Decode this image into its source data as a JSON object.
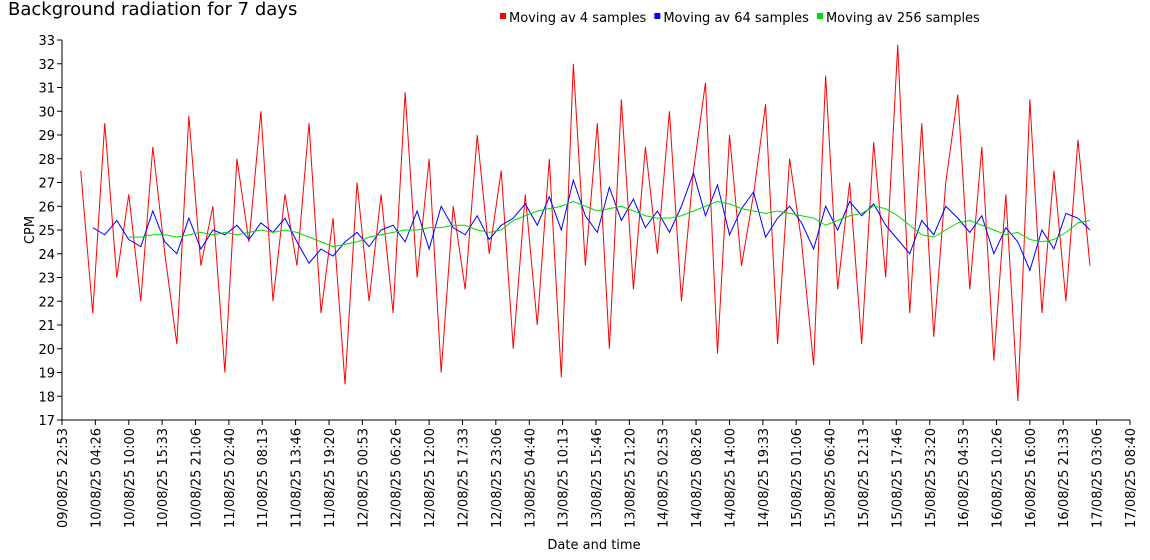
{
  "chart_data": {
    "type": "line",
    "title": "Background radiation for 7 days",
    "x_label": "Date and time",
    "y_label": "CPM",
    "ylim": [
      17,
      33
    ],
    "yticks": [
      17,
      18,
      19,
      20,
      21,
      22,
      23,
      24,
      25,
      26,
      27,
      28,
      29,
      30,
      31,
      32,
      33
    ],
    "xlim": [
      "09/08/25 22:53",
      "17/08/25 08:40"
    ],
    "xticks": [
      "09/08/25 22:53",
      "10/08/25 04:26",
      "10/08/25 10:00",
      "10/08/25 15:33",
      "10/08/25 21:06",
      "11/08/25 02:40",
      "11/08/25 08:13",
      "11/08/25 13:46",
      "11/08/25 19:20",
      "12/08/25 00:53",
      "12/08/25 06:26",
      "12/08/25 12:00",
      "12/08/25 17:33",
      "12/08/25 23:06",
      "13/08/25 04:40",
      "13/08/25 10:13",
      "13/08/25 15:46",
      "13/08/25 21:20",
      "14/08/25 02:53",
      "14/08/25 08:26",
      "14/08/25 14:00",
      "14/08/25 19:33",
      "15/08/25 01:06",
      "15/08/25 06:40",
      "15/08/25 12:13",
      "15/08/25 17:46",
      "15/08/25 23:20",
      "16/08/25 04:53",
      "16/08/25 10:26",
      "16/08/25 16:00",
      "16/08/25 21:33",
      "17/08/25 03:06",
      "17/08/25 08:40"
    ],
    "legend": "top",
    "x": [
      "10/08/25 02:00",
      "10/08/25 04:00",
      "10/08/25 06:00",
      "10/08/25 08:00",
      "10/08/25 10:00",
      "10/08/25 12:00",
      "10/08/25 14:00",
      "10/08/25 16:00",
      "10/08/25 18:00",
      "10/08/25 20:00",
      "10/08/25 22:00",
      "11/08/25 00:00",
      "11/08/25 02:00",
      "11/08/25 04:00",
      "11/08/25 06:00",
      "11/08/25 08:00",
      "11/08/25 10:00",
      "11/08/25 12:00",
      "11/08/25 14:00",
      "11/08/25 16:00",
      "11/08/25 18:00",
      "11/08/25 20:00",
      "11/08/25 22:00",
      "12/08/25 00:00",
      "12/08/25 02:00",
      "12/08/25 04:00",
      "12/08/25 06:00",
      "12/08/25 08:00",
      "12/08/25 10:00",
      "12/08/25 12:00",
      "12/08/25 14:00",
      "12/08/25 16:00",
      "12/08/25 18:00",
      "12/08/25 20:00",
      "12/08/25 22:00",
      "13/08/25 00:00",
      "13/08/25 02:00",
      "13/08/25 04:00",
      "13/08/25 06:00",
      "13/08/25 08:00",
      "13/08/25 10:00",
      "13/08/25 12:00",
      "13/08/25 14:00",
      "13/08/25 16:00",
      "13/08/25 18:00",
      "13/08/25 20:00",
      "13/08/25 22:00",
      "14/08/25 00:00",
      "14/08/25 02:00",
      "14/08/25 04:00",
      "14/08/25 06:00",
      "14/08/25 08:00",
      "14/08/25 10:00",
      "14/08/25 12:00",
      "14/08/25 14:00",
      "14/08/25 16:00",
      "14/08/25 18:00",
      "14/08/25 20:00",
      "14/08/25 22:00",
      "15/08/25 00:00",
      "15/08/25 02:00",
      "15/08/25 04:00",
      "15/08/25 06:00",
      "15/08/25 08:00",
      "15/08/25 10:00",
      "15/08/25 12:00",
      "15/08/25 14:00",
      "15/08/25 16:00",
      "15/08/25 18:00",
      "15/08/25 20:00",
      "15/08/25 22:00",
      "16/08/25 00:00",
      "16/08/25 02:00",
      "16/08/25 04:00",
      "16/08/25 06:00",
      "16/08/25 08:00",
      "16/08/25 10:00",
      "16/08/25 12:00",
      "16/08/25 14:00",
      "16/08/25 16:00",
      "16/08/25 18:00",
      "16/08/25 20:00",
      "16/08/25 22:00",
      "17/08/25 00:00",
      "17/08/25 02:00"
    ],
    "series": [
      {
        "name": "Moving av 4 samples",
        "color": "#ff0000",
        "values": [
          27.5,
          21.5,
          29.5,
          23.0,
          26.5,
          22.0,
          28.5,
          24.0,
          20.2,
          29.8,
          23.5,
          26.0,
          19.0,
          28.0,
          24.5,
          30.0,
          22.0,
          26.5,
          23.5,
          29.5,
          21.5,
          25.5,
          18.5,
          27.0,
          22.0,
          26.5,
          21.5,
          30.8,
          23.0,
          28.0,
          19.0,
          26.0,
          22.5,
          29.0,
          24.0,
          27.5,
          20.0,
          26.5,
          21.0,
          28.0,
          18.8,
          32.0,
          23.5,
          29.5,
          20.0,
          30.5,
          22.5,
          28.5,
          24.0,
          30.0,
          22.0,
          27.5,
          31.2,
          19.8,
          29.0,
          23.5,
          26.5,
          30.3,
          20.2,
          28.0,
          24.5,
          19.3,
          31.5,
          22.5,
          27.0,
          20.2,
          28.7,
          23.0,
          32.8,
          21.5,
          29.5,
          20.5,
          27.0,
          30.7,
          22.5,
          28.5,
          19.5,
          26.5,
          17.8,
          30.5,
          21.5,
          27.5,
          22.0,
          28.8,
          23.5
        ]
      },
      {
        "name": "Moving av 64 samples",
        "color": "#0000ff",
        "values": [
          null,
          25.1,
          24.8,
          25.4,
          24.6,
          24.3,
          25.8,
          24.5,
          24.0,
          25.5,
          24.2,
          25.0,
          24.8,
          25.2,
          24.6,
          25.3,
          24.9,
          25.5,
          24.5,
          23.6,
          24.2,
          23.9,
          24.5,
          24.9,
          24.3,
          25.0,
          25.2,
          24.5,
          25.8,
          24.2,
          26.0,
          25.1,
          24.8,
          25.6,
          24.6,
          25.2,
          25.5,
          26.1,
          25.2,
          26.4,
          25.0,
          27.1,
          25.6,
          24.9,
          26.8,
          25.4,
          26.3,
          25.1,
          25.8,
          24.9,
          26.0,
          27.4,
          25.6,
          26.9,
          24.8,
          25.9,
          26.6,
          24.7,
          25.5,
          26.0,
          25.3,
          24.2,
          26.0,
          25.0,
          26.2,
          25.6,
          26.1,
          25.2,
          24.6,
          24.0,
          25.4,
          24.8,
          26.0,
          25.5,
          24.9,
          25.6,
          24.0,
          25.1,
          24.5,
          23.3,
          25.0,
          24.2,
          25.7,
          25.5,
          25.0
        ]
      },
      {
        "name": "Moving av 256 samples",
        "color": "#00dd00",
        "values": [
          null,
          null,
          null,
          null,
          24.7,
          24.7,
          24.8,
          24.8,
          24.7,
          24.8,
          24.9,
          24.8,
          24.9,
          24.8,
          24.9,
          25.0,
          24.9,
          25.0,
          24.9,
          24.7,
          24.5,
          24.3,
          24.4,
          24.5,
          24.7,
          24.8,
          24.9,
          25.0,
          25.0,
          25.1,
          25.1,
          25.2,
          25.2,
          25.0,
          24.9,
          25.0,
          25.4,
          25.6,
          25.8,
          25.9,
          26.0,
          26.2,
          26.0,
          25.8,
          25.9,
          26.0,
          25.8,
          25.6,
          25.5,
          25.5,
          25.6,
          25.8,
          26.0,
          26.2,
          26.1,
          25.9,
          25.8,
          25.7,
          25.8,
          25.7,
          25.6,
          25.5,
          25.2,
          25.4,
          25.6,
          25.7,
          26.0,
          25.9,
          25.6,
          25.2,
          24.8,
          24.7,
          25.0,
          25.3,
          25.4,
          25.2,
          25.0,
          24.8,
          24.9,
          24.6,
          24.5,
          24.6,
          24.9,
          25.3,
          25.4
        ]
      }
    ]
  }
}
